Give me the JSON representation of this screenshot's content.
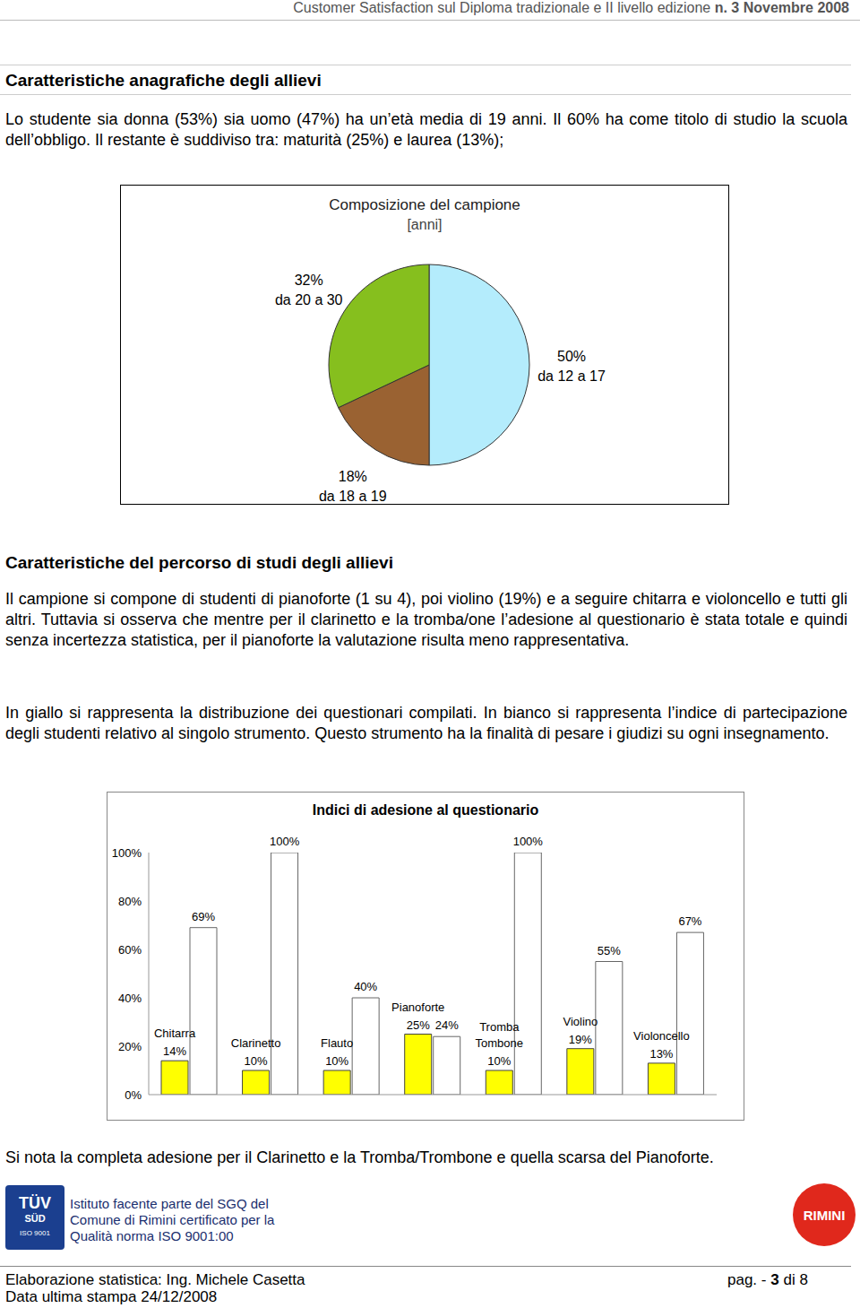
{
  "header": {
    "text": "Customer Satisfaction sul Diploma tradizionale e II livello edizione",
    "bold": "n. 3 Novembre 2008"
  },
  "sections": [
    {
      "title": "Caratteristiche anagrafiche degli allievi",
      "paragraphs": [
        "Lo studente sia donna (53%) sia uomo (47%) ha un’età media di 19 anni. Il 60% ha come titolo di studio la scuola dell’obbligo. Il restante è suddiviso tra: maturità (25%) e laurea (13%);"
      ]
    },
    {
      "title": "Caratteristiche del percorso di studi degli allievi",
      "paragraphs": [
        "Il campione si compone di studenti di pianoforte (1 su 4), poi violino (19%) e a seguire chitarra e violoncello e tutti gli altri. Tuttavia si osserva che mentre per il clarinetto e la tromba/one l’adesione al questionario è stata totale e quindi senza incertezza statistica, per il pianoforte la valutazione risulta meno rappresentativa.",
        "In giallo si rappresenta la distribuzione dei questionari compilati. In bianco si rappresenta l’indice di partecipazione degli studenti relativo al singolo strumento. Questo strumento ha la finalità di pesare i giudizi su ogni insegnamento."
      ]
    }
  ],
  "chart_data": [
    {
      "type": "pie",
      "title": "Composizione del campione",
      "subtitle": "[anni]",
      "categories": [
        "da 12 a 17",
        "da 18 a 19",
        "da 20 a 30"
      ],
      "values": [
        50,
        18,
        32
      ],
      "value_labels": [
        "50%",
        "18%",
        "32%"
      ],
      "colors": [
        "#b4ecfc",
        "#9a6232",
        "#86bf1e"
      ],
      "data_labels": true
    },
    {
      "type": "bar",
      "title": "Indici di adesione al questionario",
      "categories": [
        "Chitarra",
        "Clarinetto",
        "Flauto",
        "Pianoforte",
        "Tromba Tombone",
        "Violino",
        "Violoncello"
      ],
      "series": [
        {
          "color": "#ffff00",
          "values": [
            14,
            10,
            10,
            25,
            10,
            19,
            13
          ],
          "value_labels": [
            "14%",
            "10%",
            "10%",
            "25%",
            "10%",
            "19%",
            "13%"
          ]
        },
        {
          "color": "#ffffff",
          "values": [
            69,
            100,
            40,
            24,
            100,
            55,
            67
          ],
          "value_labels": [
            "69%",
            "100%",
            "40%",
            "24%",
            "100%",
            "55%",
            "67%"
          ]
        }
      ],
      "ylim": [
        0,
        100
      ],
      "yticks": [
        {
          "value": 0,
          "label": "0%"
        },
        {
          "value": 20,
          "label": "20%"
        },
        {
          "value": 40,
          "label": "40%"
        },
        {
          "value": 60,
          "label": "60%"
        },
        {
          "value": 80,
          "label": "80%"
        },
        {
          "value": 100,
          "label": "100%"
        }
      ],
      "tick_labels": "y",
      "data_labels": true,
      "grid": false
    }
  ],
  "conclusion": "Si nota la completa adesione per il Clarinetto e la Tromba/Trombone e quella scarsa del Pianoforte.",
  "footer": {
    "logo_left": [
      "TÜV",
      "SÜD",
      "ISO 9001"
    ],
    "institute": [
      "Istituto facente parte del SGQ del",
      "Comune di Rimini certificato per la",
      "Qualità norma ISO 9001:00"
    ],
    "logo_right": "RIMINI",
    "author": "Elaborazione statistica: Ing. Michele Casetta",
    "page": [
      "pag. -",
      "3",
      "di 8"
    ],
    "printed": "Data ultima stampa 24/12/2008"
  }
}
